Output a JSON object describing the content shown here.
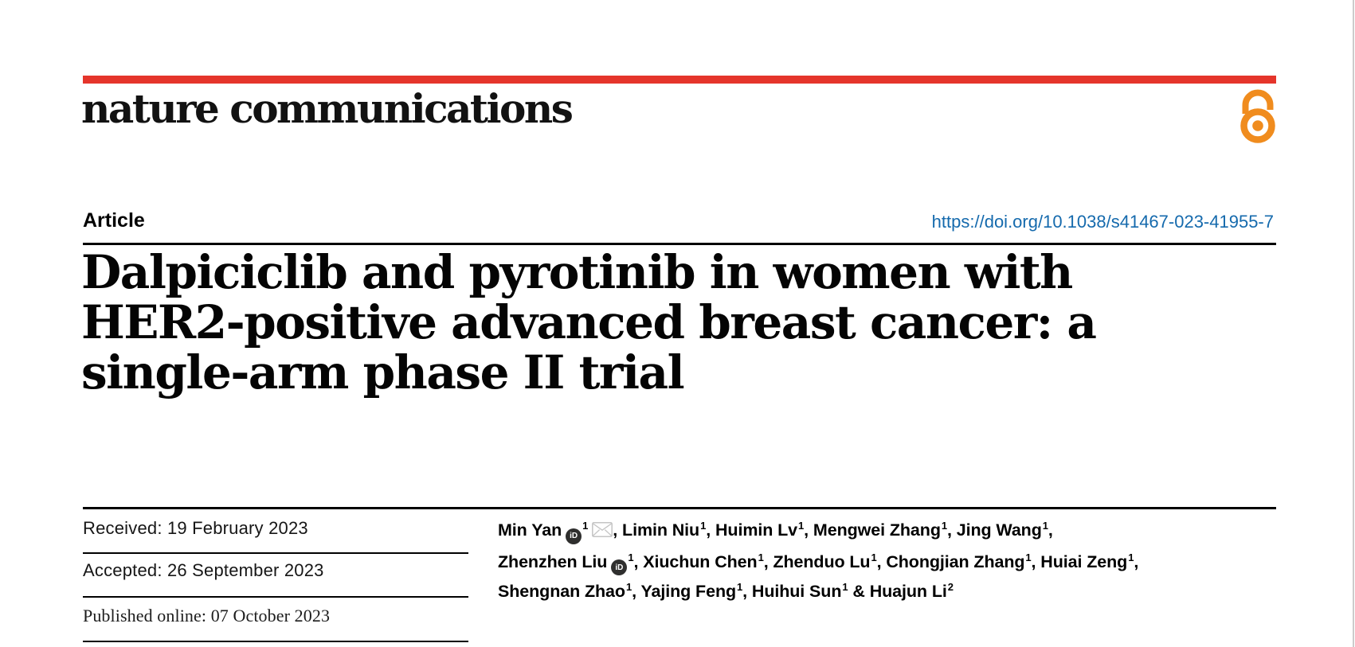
{
  "page": {
    "background": "#ffffff",
    "edge_line_color": "#cccccc"
  },
  "masthead": {
    "logo_text": "nature communications",
    "accent_bar_color": "#e5352b",
    "open_access_color": "#f08c1e"
  },
  "icons": {
    "open_access": "open-lock-icon",
    "orcid": "orcid-id-icon",
    "envelope": "mail-envelope-icon"
  },
  "article_header": {
    "label": "Article",
    "doi_link": "https://doi.org/10.1038/s41467-023-41955-7",
    "doi_color": "#156aad",
    "title_lines": [
      "Dalpiciclib and pyrotinib in women with",
      "HER2-positive advanced breast cancer: a",
      "single-arm phase II trial"
    ]
  },
  "dates": {
    "received": "Received: 19 February 2023",
    "accepted": "Accepted: 26 September 2023",
    "published_online": "Published online: 07 October 2023"
  },
  "authors": {
    "orcid_icon_label": "iD",
    "lines": [
      {
        "trail": ",",
        "segments": [
          {
            "text": "Min Yan",
            "orcid": true,
            "sup": "1",
            "envelope": true
          },
          {
            "pre": ", ",
            "text": "Limin Niu",
            "sup": "1"
          },
          {
            "pre": ", ",
            "text": "Huimin Lv",
            "sup": "1"
          },
          {
            "pre": ", ",
            "text": "Mengwei Zhang",
            "sup": "1"
          },
          {
            "pre": ", ",
            "text": "Jing Wang",
            "sup": "1"
          }
        ]
      },
      {
        "trail": ",",
        "segments": [
          {
            "text": "Zhenzhen Liu",
            "orcid": true,
            "sup": "1"
          },
          {
            "pre": ", ",
            "text": "Xiuchun Chen",
            "sup": "1"
          },
          {
            "pre": ", ",
            "text": "Zhenduo Lu",
            "sup": "1"
          },
          {
            "pre": ", ",
            "text": "Chongjian Zhang",
            "sup": "1"
          },
          {
            "pre": ", ",
            "text": "Huiai Zeng",
            "sup": "1"
          }
        ]
      },
      {
        "trail": "",
        "segments": [
          {
            "text": "Shengnan Zhao",
            "sup": "1"
          },
          {
            "pre": ", ",
            "text": "Yajing Feng",
            "sup": "1"
          },
          {
            "pre": ", ",
            "text": "Huihui Sun",
            "sup": "1"
          },
          {
            "pre": " & ",
            "text": "Huajun Li",
            "sup": "2"
          }
        ]
      }
    ]
  }
}
